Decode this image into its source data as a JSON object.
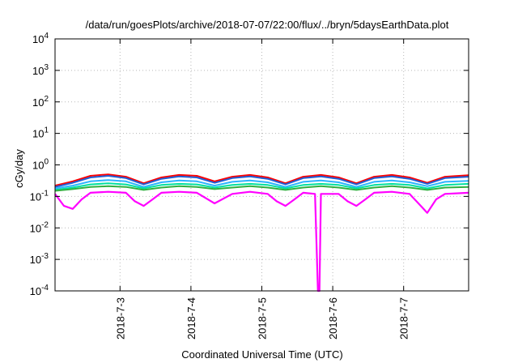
{
  "chart_data": {
    "type": "line",
    "title": "/data/run/goesPlots/archive/2018-07-07/22:00/flux/../bryn/5daysEarthData.plot",
    "xlabel": "Coordinated Universal Time (UTC)",
    "ylabel": "cGy/day",
    "yscale": "log",
    "ylim": [
      0.0001,
      10000
    ],
    "y_ticks": [
      {
        "value": 0.0001,
        "base": "10",
        "exp": "-4"
      },
      {
        "value": 0.001,
        "base": "10",
        "exp": "-3"
      },
      {
        "value": 0.01,
        "base": "10",
        "exp": "-2"
      },
      {
        "value": 0.1,
        "base": "10",
        "exp": "-1"
      },
      {
        "value": 1,
        "base": "10",
        "exp": "0"
      },
      {
        "value": 10,
        "base": "10",
        "exp": "1"
      },
      {
        "value": 100,
        "base": "10",
        "exp": "2"
      },
      {
        "value": 1000,
        "base": "10",
        "exp": "3"
      },
      {
        "value": 10000,
        "base": "10",
        "exp": "4"
      }
    ],
    "x_range": [
      "2018-07-02T02:00",
      "2018-07-07T22:00"
    ],
    "x_ticks": [
      {
        "value": "2018-07-03T00:00",
        "label": "2018-7-3"
      },
      {
        "value": "2018-07-04T00:00",
        "label": "2018-7-4"
      },
      {
        "value": "2018-07-05T00:00",
        "label": "2018-7-5"
      },
      {
        "value": "2018-07-06T00:00",
        "label": "2018-7-6"
      },
      {
        "value": "2018-07-07T00:00",
        "label": "2018-7-7"
      }
    ],
    "grid": true,
    "legend": "none",
    "series": [
      {
        "color": "#ff0000",
        "x": [
          "2018-07-02T02:00",
          "2018-07-02T08:00",
          "2018-07-02T14:00",
          "2018-07-02T20:00",
          "2018-07-03T02:00",
          "2018-07-03T08:00",
          "2018-07-03T14:00",
          "2018-07-03T20:00",
          "2018-07-04T02:00",
          "2018-07-04T08:00",
          "2018-07-04T14:00",
          "2018-07-04T20:00",
          "2018-07-05T02:00",
          "2018-07-05T08:00",
          "2018-07-05T14:00",
          "2018-07-05T20:00",
          "2018-07-06T02:00",
          "2018-07-06T08:00",
          "2018-07-06T14:00",
          "2018-07-06T20:00",
          "2018-07-07T02:00",
          "2018-07-07T08:00",
          "2018-07-07T14:00",
          "2018-07-07T22:00"
        ],
        "y": [
          0.22,
          0.3,
          0.45,
          0.5,
          0.42,
          0.26,
          0.4,
          0.48,
          0.45,
          0.3,
          0.42,
          0.48,
          0.4,
          0.26,
          0.42,
          0.48,
          0.4,
          0.26,
          0.42,
          0.48,
          0.4,
          0.27,
          0.42,
          0.47
        ]
      },
      {
        "color": "#1f5fd6",
        "x": [
          "2018-07-02T02:00",
          "2018-07-02T08:00",
          "2018-07-02T14:00",
          "2018-07-02T20:00",
          "2018-07-03T02:00",
          "2018-07-03T08:00",
          "2018-07-03T14:00",
          "2018-07-03T20:00",
          "2018-07-04T02:00",
          "2018-07-04T08:00",
          "2018-07-04T14:00",
          "2018-07-04T20:00",
          "2018-07-05T02:00",
          "2018-07-05T08:00",
          "2018-07-05T14:00",
          "2018-07-05T20:00",
          "2018-07-06T02:00",
          "2018-07-06T08:00",
          "2018-07-06T14:00",
          "2018-07-06T20:00",
          "2018-07-07T02:00",
          "2018-07-07T08:00",
          "2018-07-07T14:00",
          "2018-07-07T22:00"
        ],
        "y": [
          0.2,
          0.27,
          0.4,
          0.45,
          0.38,
          0.24,
          0.36,
          0.43,
          0.4,
          0.27,
          0.38,
          0.43,
          0.36,
          0.24,
          0.38,
          0.43,
          0.36,
          0.24,
          0.38,
          0.43,
          0.36,
          0.25,
          0.38,
          0.42
        ]
      },
      {
        "color": "#2db3ff",
        "x": [
          "2018-07-02T02:00",
          "2018-07-02T08:00",
          "2018-07-02T14:00",
          "2018-07-02T20:00",
          "2018-07-03T02:00",
          "2018-07-03T08:00",
          "2018-07-03T14:00",
          "2018-07-03T20:00",
          "2018-07-04T02:00",
          "2018-07-04T08:00",
          "2018-07-04T14:00",
          "2018-07-04T20:00",
          "2018-07-05T02:00",
          "2018-07-05T08:00",
          "2018-07-05T14:00",
          "2018-07-05T20:00",
          "2018-07-06T02:00",
          "2018-07-06T08:00",
          "2018-07-06T14:00",
          "2018-07-06T20:00",
          "2018-07-07T02:00",
          "2018-07-07T08:00",
          "2018-07-07T14:00",
          "2018-07-07T22:00"
        ],
        "y": [
          0.18,
          0.22,
          0.3,
          0.33,
          0.3,
          0.2,
          0.28,
          0.32,
          0.3,
          0.22,
          0.29,
          0.32,
          0.28,
          0.2,
          0.29,
          0.32,
          0.28,
          0.2,
          0.29,
          0.32,
          0.28,
          0.21,
          0.29,
          0.31
        ]
      },
      {
        "color": "#00e0a0",
        "x": [
          "2018-07-02T02:00",
          "2018-07-02T08:00",
          "2018-07-02T14:00",
          "2018-07-02T20:00",
          "2018-07-03T02:00",
          "2018-07-03T08:00",
          "2018-07-03T14:00",
          "2018-07-03T20:00",
          "2018-07-04T02:00",
          "2018-07-04T08:00",
          "2018-07-04T14:00",
          "2018-07-04T20:00",
          "2018-07-05T02:00",
          "2018-07-05T08:00",
          "2018-07-05T14:00",
          "2018-07-05T20:00",
          "2018-07-06T02:00",
          "2018-07-06T08:00",
          "2018-07-06T14:00",
          "2018-07-06T20:00",
          "2018-07-07T02:00",
          "2018-07-07T08:00",
          "2018-07-07T14:00",
          "2018-07-07T22:00"
        ],
        "y": [
          0.16,
          0.19,
          0.24,
          0.26,
          0.24,
          0.18,
          0.23,
          0.25,
          0.24,
          0.19,
          0.23,
          0.25,
          0.23,
          0.18,
          0.23,
          0.25,
          0.23,
          0.18,
          0.23,
          0.25,
          0.23,
          0.18,
          0.23,
          0.25
        ]
      },
      {
        "color": "#30b040",
        "x": [
          "2018-07-02T02:00",
          "2018-07-02T08:00",
          "2018-07-02T14:00",
          "2018-07-02T20:00",
          "2018-07-03T02:00",
          "2018-07-03T08:00",
          "2018-07-03T14:00",
          "2018-07-03T20:00",
          "2018-07-04T02:00",
          "2018-07-04T08:00",
          "2018-07-04T14:00",
          "2018-07-04T20:00",
          "2018-07-05T02:00",
          "2018-07-05T08:00",
          "2018-07-05T14:00",
          "2018-07-05T20:00",
          "2018-07-06T02:00",
          "2018-07-06T08:00",
          "2018-07-06T14:00",
          "2018-07-06T20:00",
          "2018-07-07T02:00",
          "2018-07-07T08:00",
          "2018-07-07T14:00",
          "2018-07-07T22:00"
        ],
        "y": [
          0.15,
          0.17,
          0.2,
          0.21,
          0.2,
          0.16,
          0.19,
          0.21,
          0.2,
          0.17,
          0.19,
          0.21,
          0.19,
          0.16,
          0.19,
          0.21,
          0.19,
          0.16,
          0.19,
          0.21,
          0.19,
          0.16,
          0.19,
          0.2
        ]
      },
      {
        "color": "#ff00ff",
        "x": [
          "2018-07-02T02:00",
          "2018-07-02T05:00",
          "2018-07-02T08:00",
          "2018-07-02T11:00",
          "2018-07-02T14:00",
          "2018-07-02T20:00",
          "2018-07-03T02:00",
          "2018-07-03T05:00",
          "2018-07-03T08:00",
          "2018-07-03T11:00",
          "2018-07-03T14:00",
          "2018-07-03T20:00",
          "2018-07-04T02:00",
          "2018-07-04T08:00",
          "2018-07-04T14:00",
          "2018-07-04T20:00",
          "2018-07-05T02:00",
          "2018-07-05T05:00",
          "2018-07-05T08:00",
          "2018-07-05T11:00",
          "2018-07-05T14:00",
          "2018-07-05T18:00",
          "2018-07-05T19:00",
          "2018-07-05T19:30",
          "2018-07-05T20:00",
          "2018-07-06T02:00",
          "2018-07-06T05:00",
          "2018-07-06T08:00",
          "2018-07-06T11:00",
          "2018-07-06T14:00",
          "2018-07-06T20:00",
          "2018-07-07T02:00",
          "2018-07-07T05:00",
          "2018-07-07T08:00",
          "2018-07-07T11:00",
          "2018-07-07T14:00",
          "2018-07-07T22:00"
        ],
        "y": [
          0.12,
          0.05,
          0.04,
          0.08,
          0.13,
          0.14,
          0.13,
          0.07,
          0.05,
          0.08,
          0.13,
          0.14,
          0.13,
          0.06,
          0.12,
          0.14,
          0.12,
          0.07,
          0.05,
          0.08,
          0.13,
          0.12,
          0.0001,
          0.0001,
          0.12,
          0.12,
          0.07,
          0.05,
          0.08,
          0.13,
          0.14,
          0.12,
          0.06,
          0.03,
          0.08,
          0.12,
          0.13
        ]
      }
    ]
  }
}
